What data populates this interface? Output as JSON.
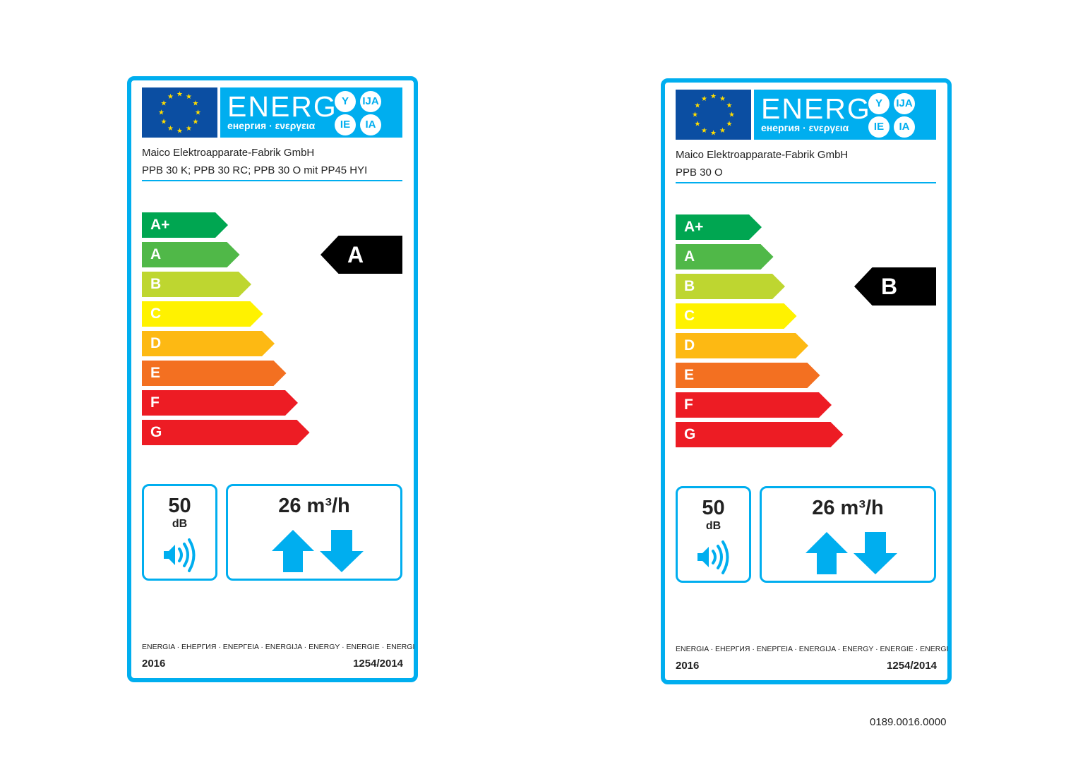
{
  "colors": {
    "frame": "#00aeef",
    "flag": "#0b4ea2",
    "star": "#ffdd00",
    "indicator": "#000000"
  },
  "scale": [
    {
      "label": "A+",
      "color": "#00a651"
    },
    {
      "label": "A",
      "color": "#50b848"
    },
    {
      "label": "B",
      "color": "#bed630"
    },
    {
      "label": "C",
      "color": "#fff200"
    },
    {
      "label": "D",
      "color": "#fdb913"
    },
    {
      "label": "E",
      "color": "#f37021"
    },
    {
      "label": "F",
      "color": "#ed1c24"
    },
    {
      "label": "G",
      "color": "#ed1c24"
    }
  ],
  "labels": [
    {
      "energ_word": "ENERG",
      "energ_sub": "енергия · ενεργεια",
      "suffixes": [
        "Y",
        "IJA",
        "IE",
        "IA"
      ],
      "supplier": "Maico Elektroapparate-Fabrik GmbH",
      "model": "PPB 30 K; PPB 30 RC; PPB 30 O mit PP45 HYI",
      "energy_class": "A",
      "energy_class_index": 1,
      "noise_value": "50",
      "noise_unit": "dB",
      "airflow": "26 m³/h",
      "languages": "ENERGIA · ЕНЕРГИЯ · ΕΝΕΡΓΕΙΑ · ENERGIJA · ENERGY · ENERGIE · ENERGI",
      "year": "2016",
      "regulation": "1254/2014"
    },
    {
      "energ_word": "ENERG",
      "energ_sub": "енергия · ενεργεια",
      "suffixes": [
        "Y",
        "IJA",
        "IE",
        "IA"
      ],
      "supplier": "Maico Elektroapparate-Fabrik GmbH",
      "model": "PPB 30 O",
      "energy_class": "B",
      "energy_class_index": 2,
      "noise_value": "50",
      "noise_unit": "dB",
      "airflow": "26 m³/h",
      "languages": "ENERGIA · ЕНЕРГИЯ · ΕΝΕΡΓΕΙΑ · ENERGIJA · ENERGY · ENERGIE · ENERGI",
      "year": "2016",
      "regulation": "1254/2014"
    }
  ],
  "document_number": "0189.0016.0000"
}
